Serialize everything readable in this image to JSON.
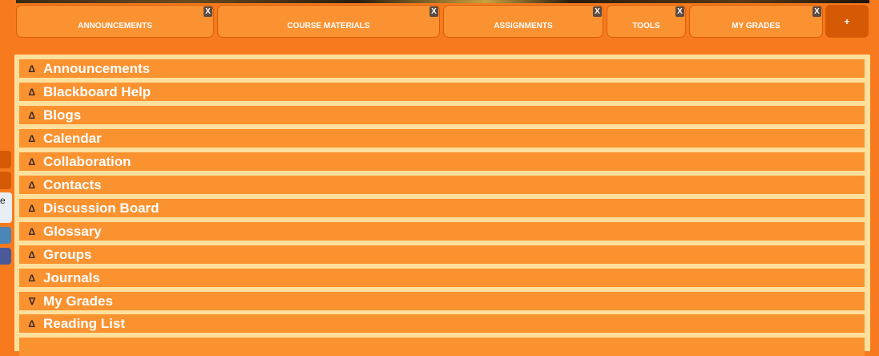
{
  "tabs": [
    {
      "label": "ANNOUNCEMENTS",
      "close": "X"
    },
    {
      "label": "COURSE MATERIALS",
      "close": "X"
    },
    {
      "label": "ASSIGNMENTS",
      "close": "X"
    },
    {
      "label": "TOOLS",
      "close": "X"
    },
    {
      "label": "MY GRADES",
      "close": "X"
    }
  ],
  "add_tab_label": "+",
  "tools": [
    {
      "label": "Announcements",
      "arrow": "Δ"
    },
    {
      "label": "Blackboard Help",
      "arrow": "Δ"
    },
    {
      "label": "Blogs",
      "arrow": "Δ"
    },
    {
      "label": "Calendar",
      "arrow": "Δ"
    },
    {
      "label": "Collaboration",
      "arrow": "Δ"
    },
    {
      "label": "Contacts",
      "arrow": "Δ"
    },
    {
      "label": "Discussion Board",
      "arrow": "Δ"
    },
    {
      "label": "Glossary",
      "arrow": "Δ"
    },
    {
      "label": "Groups",
      "arrow": "Δ"
    },
    {
      "label": "Journals",
      "arrow": "Δ"
    },
    {
      "label": "My Grades",
      "arrow": "∇"
    },
    {
      "label": "Reading List",
      "arrow": "Δ"
    }
  ],
  "side_widget_text": "e",
  "colors": {
    "page_bg": "#f77b1e",
    "tab_bg": "#fb9232",
    "panel_bg": "#fde09c",
    "row_bg": "#fb9230",
    "add_tab_bg": "#d65a06"
  }
}
